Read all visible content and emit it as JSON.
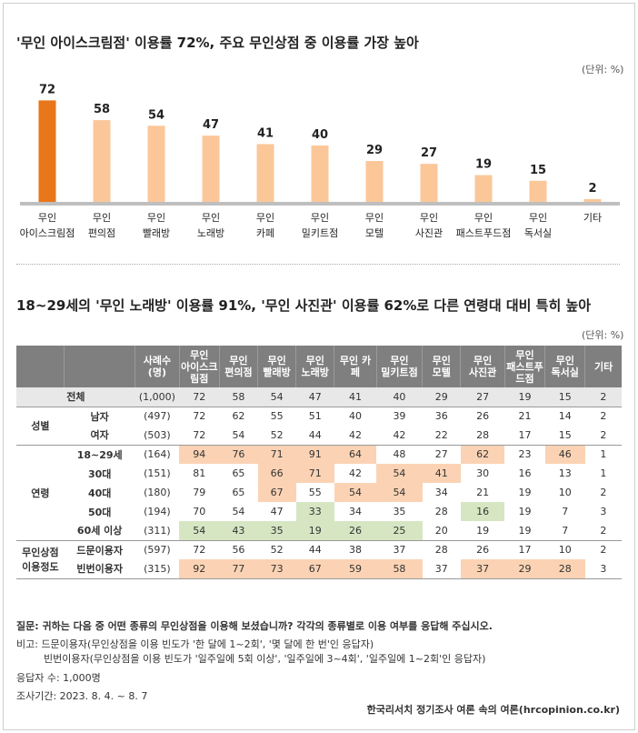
{
  "chart_data": [
    {
      "type": "bar",
      "title": "'무인 아이스크림점' 이용률 72%, 주요 무인상점 중 이용률 가장 높아",
      "unit_label": "(단위: %)",
      "categories": [
        [
          "무인",
          "아이스크림점"
        ],
        [
          "무인",
          "편의점"
        ],
        [
          "무인",
          "빨래방"
        ],
        [
          "무인",
          "노래방"
        ],
        [
          "무인",
          "카페"
        ],
        [
          "무인",
          "밀키트점"
        ],
        [
          "무인",
          "모텔"
        ],
        [
          "무인",
          "사진관"
        ],
        [
          "무인",
          "패스트푸드점"
        ],
        [
          "무인",
          "독서실"
        ],
        [
          "기타"
        ]
      ],
      "values": [
        72,
        58,
        54,
        47,
        41,
        40,
        29,
        27,
        19,
        15,
        2
      ],
      "ylim": [
        0,
        80
      ],
      "colors": {
        "highlight": "#e8761a",
        "normal": "#fbc799",
        "baseline": "#bfbfbf"
      }
    },
    {
      "type": "table",
      "title": "18~29세의 '무인 노래방' 이용률 91%, '무인 사진관' 이용률 62%로 다른 연령대 대비 특히 높아",
      "unit_label": "(단위: %)",
      "columns": [
        "",
        "",
        "사례수\n(명)",
        "무인\n아이스크\n림점",
        "무인\n편의점",
        "무인\n빨래방",
        "무인\n노래방",
        "무인 카페",
        "무인\n밀키트점",
        "무인\n모텔",
        "무인\n사진관",
        "무인\n패스트푸\n드점",
        "무인\n독서실",
        "기타"
      ],
      "total": {
        "label": "전체",
        "n": "(1,000)",
        "values": [
          72,
          58,
          54,
          47,
          41,
          40,
          29,
          27,
          19,
          15,
          2
        ]
      },
      "groups": [
        {
          "name": "성별",
          "rows": [
            {
              "label": "남자",
              "n": "(497)",
              "values": [
                72,
                62,
                55,
                51,
                40,
                39,
                36,
                26,
                21,
                14,
                2
              ],
              "hl": []
            },
            {
              "label": "여자",
              "n": "(503)",
              "values": [
                72,
                54,
                52,
                44,
                42,
                42,
                22,
                28,
                17,
                15,
                2
              ],
              "hl": []
            }
          ]
        },
        {
          "name": "연령",
          "rows": [
            {
              "label": "18~29세",
              "n": "(164)",
              "values": [
                94,
                76,
                71,
                91,
                64,
                48,
                27,
                62,
                23,
                46,
                1
              ],
              "hl": [
                "o",
                "o",
                "o",
                "o",
                "o",
                "",
                "",
                "o",
                "",
                "o",
                ""
              ]
            },
            {
              "label": "30대",
              "n": "(151)",
              "values": [
                81,
                65,
                66,
                71,
                42,
                54,
                41,
                30,
                16,
                13,
                1
              ],
              "hl": [
                "",
                "",
                "o",
                "o",
                "",
                "o",
                "o",
                "",
                "",
                "",
                ""
              ]
            },
            {
              "label": "40대",
              "n": "(180)",
              "values": [
                79,
                65,
                67,
                55,
                54,
                54,
                34,
                21,
                19,
                10,
                2
              ],
              "hl": [
                "",
                "",
                "o",
                "",
                "o",
                "o",
                "",
                "",
                "",
                "",
                ""
              ]
            },
            {
              "label": "50대",
              "n": "(194)",
              "values": [
                70,
                54,
                47,
                33,
                34,
                35,
                28,
                16,
                19,
                7,
                3
              ],
              "hl": [
                "",
                "",
                "",
                "g",
                "",
                "",
                "",
                "g",
                "",
                "",
                ""
              ]
            },
            {
              "label": "60세 이상",
              "n": "(311)",
              "values": [
                54,
                43,
                35,
                19,
                26,
                25,
                20,
                19,
                19,
                7,
                2
              ],
              "hl": [
                "g",
                "g",
                "g",
                "g",
                "g",
                "g",
                "",
                "",
                "",
                "",
                ""
              ]
            }
          ]
        },
        {
          "name": "무인상점\n이용정도",
          "rows": [
            {
              "label": "드문이용자",
              "n": "(597)",
              "values": [
                72,
                56,
                52,
                44,
                38,
                37,
                28,
                26,
                17,
                10,
                2
              ],
              "hl": []
            },
            {
              "label": "빈번이용자",
              "n": "(315)",
              "values": [
                92,
                77,
                73,
                67,
                59,
                58,
                37,
                37,
                29,
                28,
                3
              ],
              "hl": [
                "o",
                "o",
                "o",
                "o",
                "o",
                "o",
                "",
                "o",
                "o",
                "o",
                ""
              ]
            }
          ]
        }
      ],
      "colors": {
        "high": "#fbd3b4",
        "low": "#d6e6c3",
        "header": "#7f7f7f"
      }
    }
  ],
  "footer": {
    "question": "질문: 귀하는 다음 중 어떤 종류의 무인상점을 이용해 보셨습니까? 각각의 종류별로 이용 여부를 응답해 주십시오.",
    "note1": "비고:  드문이용자(무인상점을 이용 빈도가 '한 달에 1~2회', '몇 달에 한 번'인 응답자)",
    "note2": "빈번이용자(무인상점을 이용 빈도가 '일주일에 5회 이상', '일주일에 3~4회', '일주일에 1~2회'인 응답자)",
    "respondents": "응답자 수: 1,000명",
    "period": "조사기간: 2023. 8. 4. ~ 8. 7",
    "source": "한국리서치 정기조사 여론 속의 여론(hrcopinion.co.kr)"
  }
}
